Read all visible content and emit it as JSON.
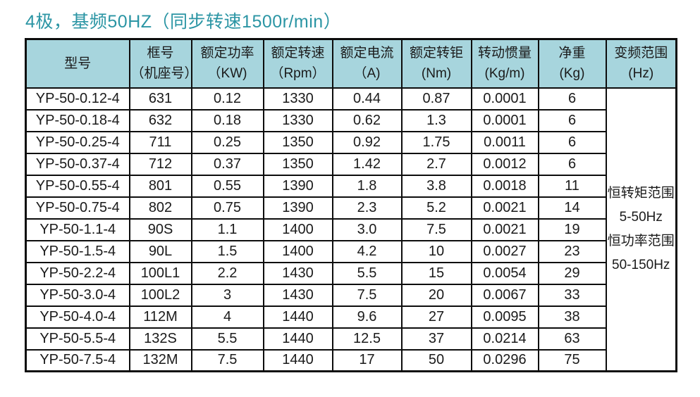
{
  "page": {
    "title": "4极，基频50HZ（同步转速1500r/min）"
  },
  "colors": {
    "title_text": "#2b95a4",
    "header_bg": "#a7d5dd",
    "border": "#0d0d0d",
    "cell_bg": "#ffffff",
    "text": "#1a1a1a"
  },
  "table": {
    "headers": [
      {
        "line1": "型号",
        "line2": ""
      },
      {
        "line1": "框号",
        "line2": "（机座号）"
      },
      {
        "line1": "额定功率",
        "line2": "（KW)"
      },
      {
        "line1": "额定转速",
        "line2": "（Rpm）"
      },
      {
        "line1": "额定电流",
        "line2": "（A)"
      },
      {
        "line1": "额定转钜",
        "line2": "(Nm)"
      },
      {
        "line1": "转动惯量",
        "line2": "(Kg/m)"
      },
      {
        "line1": "净重",
        "line2": "(Kg)"
      },
      {
        "line1": "变频范围",
        "line2": "(Hz)"
      }
    ],
    "rows": [
      [
        "YP-50-0.12-4",
        "631",
        "0.12",
        "1330",
        "0.44",
        "0.87",
        "0.0001",
        "6"
      ],
      [
        "YP-50-0.18-4",
        "632",
        "0.18",
        "1330",
        "0.62",
        "1.3",
        "0.0001",
        "6"
      ],
      [
        "YP-50-0.25-4",
        "711",
        "0.25",
        "1350",
        "0.92",
        "1.75",
        "0.0011",
        "6"
      ],
      [
        "YP-50-0.37-4",
        "712",
        "0.37",
        "1350",
        "1.42",
        "2.7",
        "0.0012",
        "6"
      ],
      [
        "YP-50-0.55-4",
        "801",
        "0.55",
        "1390",
        "1.8",
        "3.8",
        "0.0018",
        "11"
      ],
      [
        "YP-50-0.75-4",
        "802",
        "0.75",
        "1390",
        "2.3",
        "5.2",
        "0.0021",
        "14"
      ],
      [
        "YP-50-1.1-4",
        "90S",
        "1.1",
        "1400",
        "3.0",
        "7.5",
        "0.0021",
        "19"
      ],
      [
        "YP-50-1.5-4",
        "90L",
        "1.5",
        "1400",
        "4.2",
        "10",
        "0.0027",
        "23"
      ],
      [
        "YP-50-2.2-4",
        "100L1",
        "2.2",
        "1430",
        "5.5",
        "15",
        "0.0054",
        "29"
      ],
      [
        "YP-50-3.0-4",
        "100L2",
        "3",
        "1430",
        "7.5",
        "20",
        "0.0067",
        "33"
      ],
      [
        "YP-50-4.0-4",
        "112M",
        "4",
        "1440",
        "9.6",
        "27",
        "0.0095",
        "38"
      ],
      [
        "YP-50-5.5-4",
        "132S",
        "5.5",
        "1440",
        "12.5",
        "37",
        "0.0214",
        "63"
      ],
      [
        "YP-50-7.5-4",
        "132M",
        "7.5",
        "1440",
        "17",
        "50",
        "0.0296",
        "75"
      ]
    ],
    "merged_cell": {
      "lines": [
        "恒转矩范围",
        "5-50Hz",
        "恒功率范围",
        "50-150Hz"
      ]
    }
  }
}
